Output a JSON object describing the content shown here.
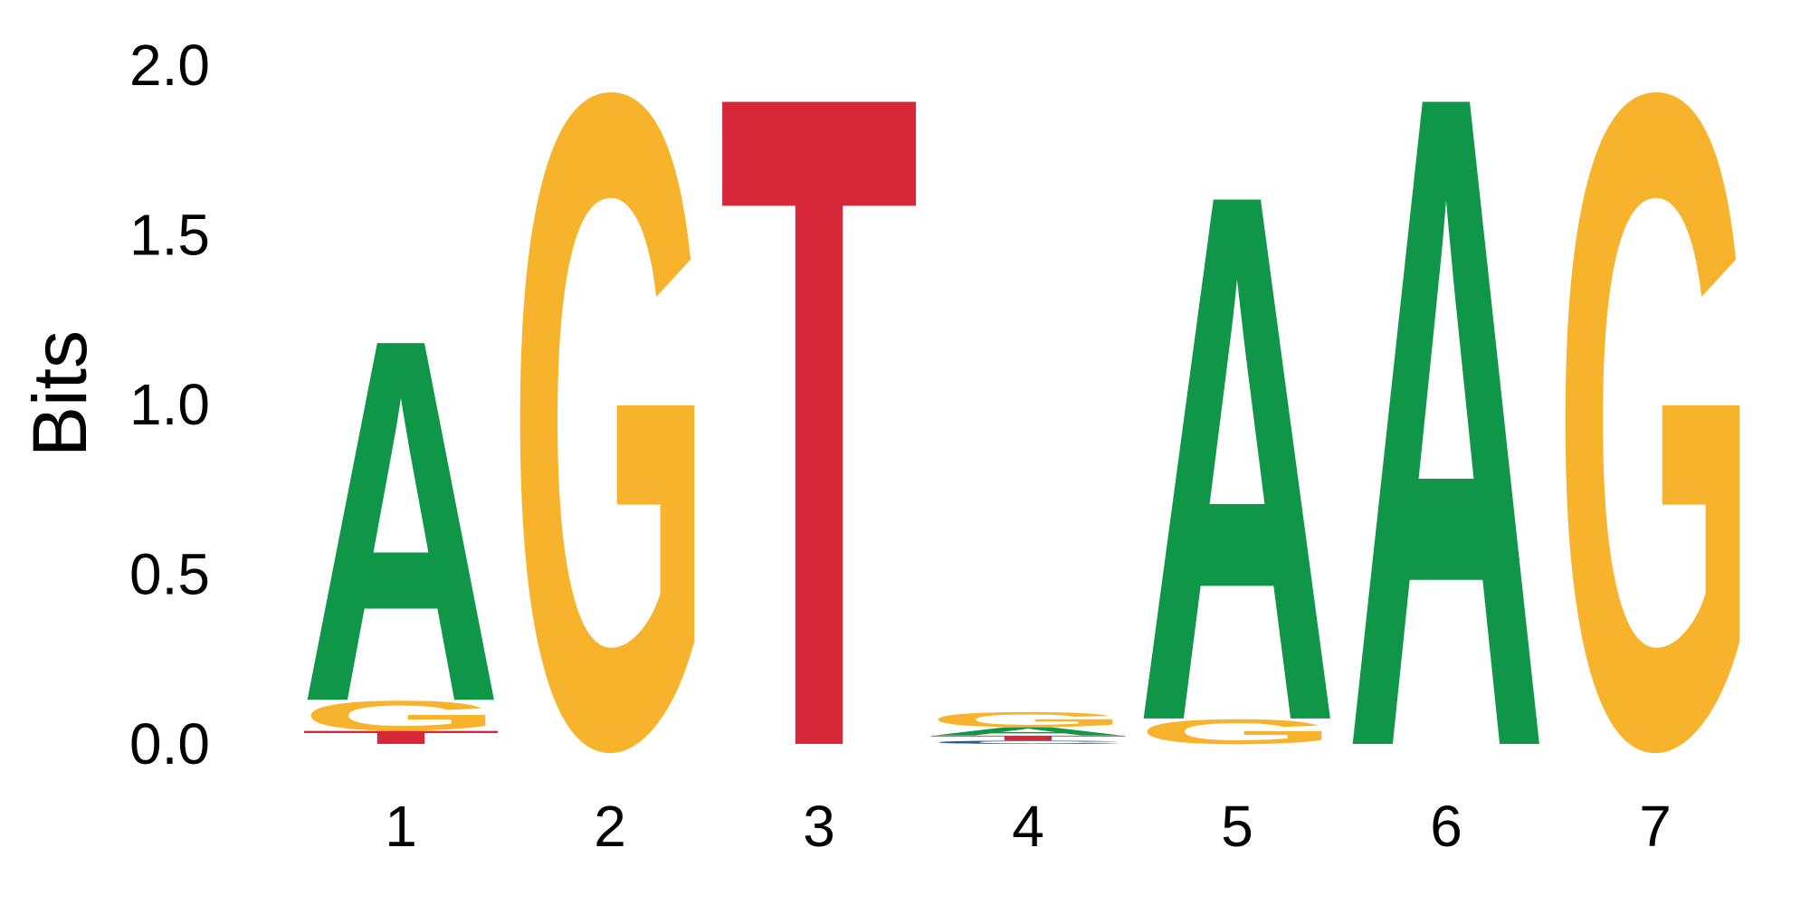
{
  "chart_data": {
    "type": "sequence_logo",
    "ylabel": "Bits",
    "ylim": [
      0,
      2
    ],
    "yticks": [
      "0.0",
      "0.5",
      "1.0",
      "1.5",
      "2.0"
    ],
    "ytick_values": [
      0,
      0.5,
      1.0,
      1.5,
      2.0
    ],
    "positions": [
      "1",
      "2",
      "3",
      "4",
      "5",
      "6",
      "7"
    ],
    "colors": {
      "A": "#109648",
      "C": "#255C99",
      "G": "#F7B32B",
      "T": "#D62839"
    },
    "stacks": [
      [
        {
          "letter": "T",
          "bits": 0.04
        },
        {
          "letter": "G",
          "bits": 0.09
        },
        {
          "letter": "A",
          "bits": 1.1
        }
      ],
      [
        {
          "letter": "G",
          "bits": 1.98
        }
      ],
      [
        {
          "letter": "T",
          "bits": 1.98
        }
      ],
      [
        {
          "letter": "C",
          "bits": 0.01
        },
        {
          "letter": "T",
          "bits": 0.015
        },
        {
          "letter": "A",
          "bits": 0.025
        },
        {
          "letter": "G",
          "bits": 0.045
        }
      ],
      [
        {
          "letter": "G",
          "bits": 0.075
        },
        {
          "letter": "A",
          "bits": 1.6
        }
      ],
      [
        {
          "letter": "A",
          "bits": 1.98
        }
      ],
      [
        {
          "letter": "G",
          "bits": 1.98
        }
      ]
    ]
  }
}
